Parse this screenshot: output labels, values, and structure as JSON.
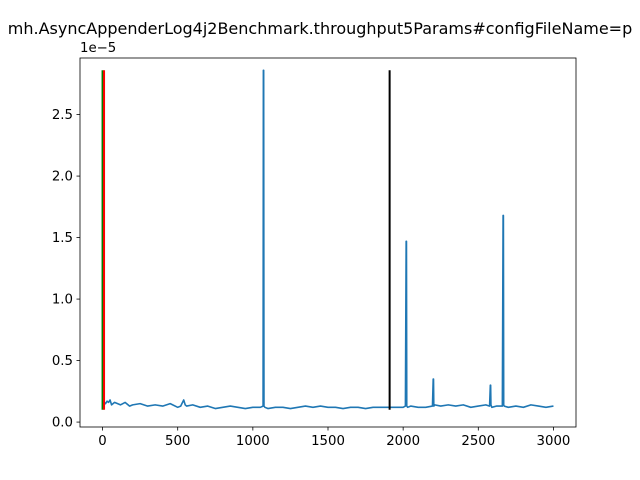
{
  "chart_data": {
    "type": "line",
    "title": "mh.AsyncAppenderLog4j2Benchmark.throughput5Params#configFileName=p",
    "offset_text": "1e−5",
    "xlabel": "",
    "ylabel": "",
    "xlim": [
      -150,
      3150
    ],
    "ylim": [
      -0.04,
      2.96
    ],
    "x_ticks": [
      0,
      500,
      1000,
      1500,
      2000,
      2500,
      3000
    ],
    "x_tick_labels": [
      "0",
      "500",
      "1000",
      "1500",
      "2000",
      "2500",
      "3000"
    ],
    "y_ticks": [
      0.0,
      0.5,
      1.0,
      1.5,
      2.0,
      2.5
    ],
    "y_tick_labels": [
      "0.0",
      "0.5",
      "1.0",
      "1.5",
      "2.0",
      "2.5"
    ],
    "grid": false,
    "legend": "none",
    "series": [
      {
        "color": "#1f77b4",
        "x": [
          0,
          2,
          4,
          6,
          8,
          12,
          20,
          30,
          40,
          50,
          60,
          80,
          100,
          120,
          150,
          180,
          200,
          250,
          300,
          350,
          400,
          450,
          500,
          520,
          540,
          550,
          560,
          600,
          650,
          700,
          750,
          800,
          850,
          900,
          950,
          1000,
          1050,
          1068,
          1070,
          1072,
          1074,
          1080,
          1100,
          1150,
          1200,
          1250,
          1300,
          1350,
          1400,
          1450,
          1500,
          1550,
          1600,
          1650,
          1700,
          1750,
          1800,
          1850,
          1900,
          1950,
          2000,
          2015,
          2020,
          2022,
          2024,
          2030,
          2050,
          2100,
          2150,
          2195,
          2200,
          2202,
          2204,
          2210,
          2250,
          2300,
          2350,
          2400,
          2450,
          2500,
          2550,
          2575,
          2580,
          2582,
          2584,
          2590,
          2620,
          2660,
          2665,
          2667,
          2669,
          2672,
          2700,
          2750,
          2800,
          2850,
          2900,
          2950,
          3000
        ],
        "y": [
          1.2,
          0.3,
          1.0,
          0.35,
          0.2,
          0.16,
          0.15,
          0.17,
          0.16,
          0.18,
          0.14,
          0.16,
          0.15,
          0.14,
          0.16,
          0.13,
          0.14,
          0.15,
          0.13,
          0.14,
          0.13,
          0.15,
          0.12,
          0.13,
          0.18,
          0.14,
          0.13,
          0.14,
          0.12,
          0.13,
          0.11,
          0.12,
          0.13,
          0.12,
          0.11,
          0.12,
          0.12,
          0.13,
          2.86,
          2.86,
          0.13,
          0.12,
          0.11,
          0.12,
          0.12,
          0.11,
          0.12,
          0.13,
          0.12,
          0.13,
          0.12,
          0.12,
          0.11,
          0.12,
          0.12,
          0.11,
          0.12,
          0.12,
          0.12,
          0.12,
          0.12,
          0.13,
          1.47,
          1.47,
          0.13,
          0.12,
          0.13,
          0.12,
          0.12,
          0.13,
          0.35,
          0.35,
          0.13,
          0.14,
          0.13,
          0.14,
          0.13,
          0.14,
          0.12,
          0.13,
          0.14,
          0.13,
          0.3,
          0.3,
          0.14,
          0.12,
          0.13,
          0.13,
          1.68,
          1.68,
          0.14,
          0.13,
          0.12,
          0.13,
          0.12,
          0.14,
          0.13,
          0.12,
          0.13
        ]
      }
    ],
    "vertical_lines": [
      {
        "x": 0,
        "ymin": 0.1,
        "ymax": 2.86,
        "color": "#008000"
      },
      {
        "x": 10,
        "ymin": 0.1,
        "ymax": 2.86,
        "color": "#ff0000"
      },
      {
        "x": 1910,
        "ymin": 0.1,
        "ymax": 2.86,
        "color": "#000000"
      }
    ]
  }
}
